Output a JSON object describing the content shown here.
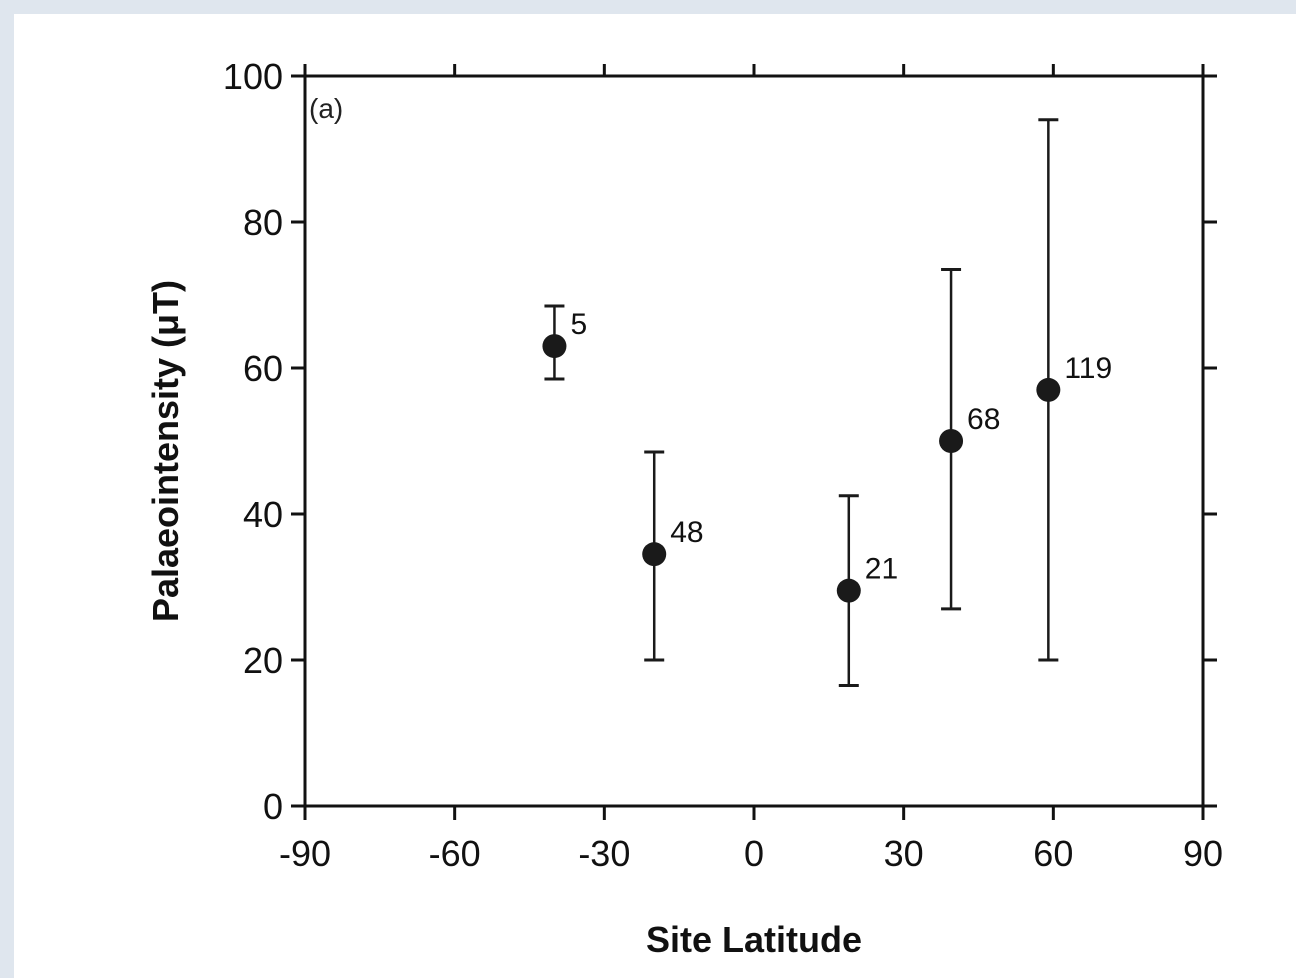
{
  "colors": {
    "background": "#dfe6ee",
    "axis": "#111111",
    "marker": "#1a1a1a"
  },
  "chart_data": {
    "type": "scatter",
    "panel_label": "(a)",
    "title": "",
    "xlabel": "Site Latitude",
    "ylabel": "Palaeointensity (μT)",
    "xlim": [
      -90,
      90
    ],
    "ylim": [
      0,
      100
    ],
    "x_ticks": [
      -90,
      -60,
      -30,
      0,
      30,
      60,
      90
    ],
    "y_ticks": [
      0,
      20,
      40,
      60,
      80,
      100
    ],
    "x_tick_labels": [
      "-90",
      "-60",
      "-30",
      "0",
      "30",
      "60",
      "90"
    ],
    "y_tick_labels": [
      "0",
      "20",
      "40",
      "60",
      "80",
      "100"
    ],
    "grid": false,
    "points": [
      {
        "x": -40,
        "y": 63,
        "y_low": 58.5,
        "y_high": 68.5,
        "label": "5"
      },
      {
        "x": -20,
        "y": 34.5,
        "y_low": 20,
        "y_high": 48.5,
        "label": "48"
      },
      {
        "x": 19,
        "y": 29.5,
        "y_low": 16.5,
        "y_high": 42.5,
        "label": "21"
      },
      {
        "x": 39.5,
        "y": 50,
        "y_low": 27,
        "y_high": 73.5,
        "label": "68"
      },
      {
        "x": 59,
        "y": 57,
        "y_low": 20,
        "y_high": 94,
        "label": "119"
      }
    ]
  }
}
